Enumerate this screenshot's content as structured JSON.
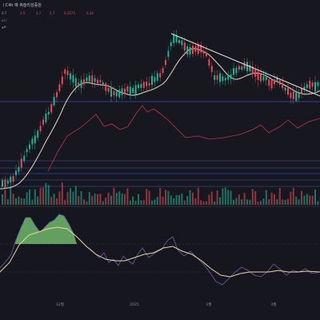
{
  "header": {
    "symbol_line": "ㅣC4h 예 쿼슬리성증원",
    "stats": [
      {
        "text": "0.7",
        "color": "#9aa0ad"
      },
      {
        "text": "2.5",
        "color": "#e04b5e"
      },
      {
        "text": "2.7",
        "color": "#e04b5e"
      },
      {
        "text": "2.7",
        "color": "#e04b5e"
      },
      {
        "text": "0.2575",
        "color": "#e04b5e"
      },
      {
        "text": "0.24",
        "color": "#e04b5e"
      }
    ],
    "sub": [
      "BTC",
      "▲▼"
    ]
  },
  "axis": {
    "ticks": [
      "12월",
      "2025",
      "2월",
      "3월"
    ]
  },
  "colors": {
    "bull": "#1fb394",
    "bear": "#e44b56",
    "ma": "#e9dfc0",
    "ma_red": "#c2334a",
    "trend": "#e6e6e6",
    "hline": "#3b56c6",
    "rsi": "#6c5fb0",
    "rsi_signal": "#e8d89a",
    "rsi_fill": "#6fb86b"
  },
  "chart_data": {
    "type": "candlestick",
    "x": [],
    "series": []
  }
}
